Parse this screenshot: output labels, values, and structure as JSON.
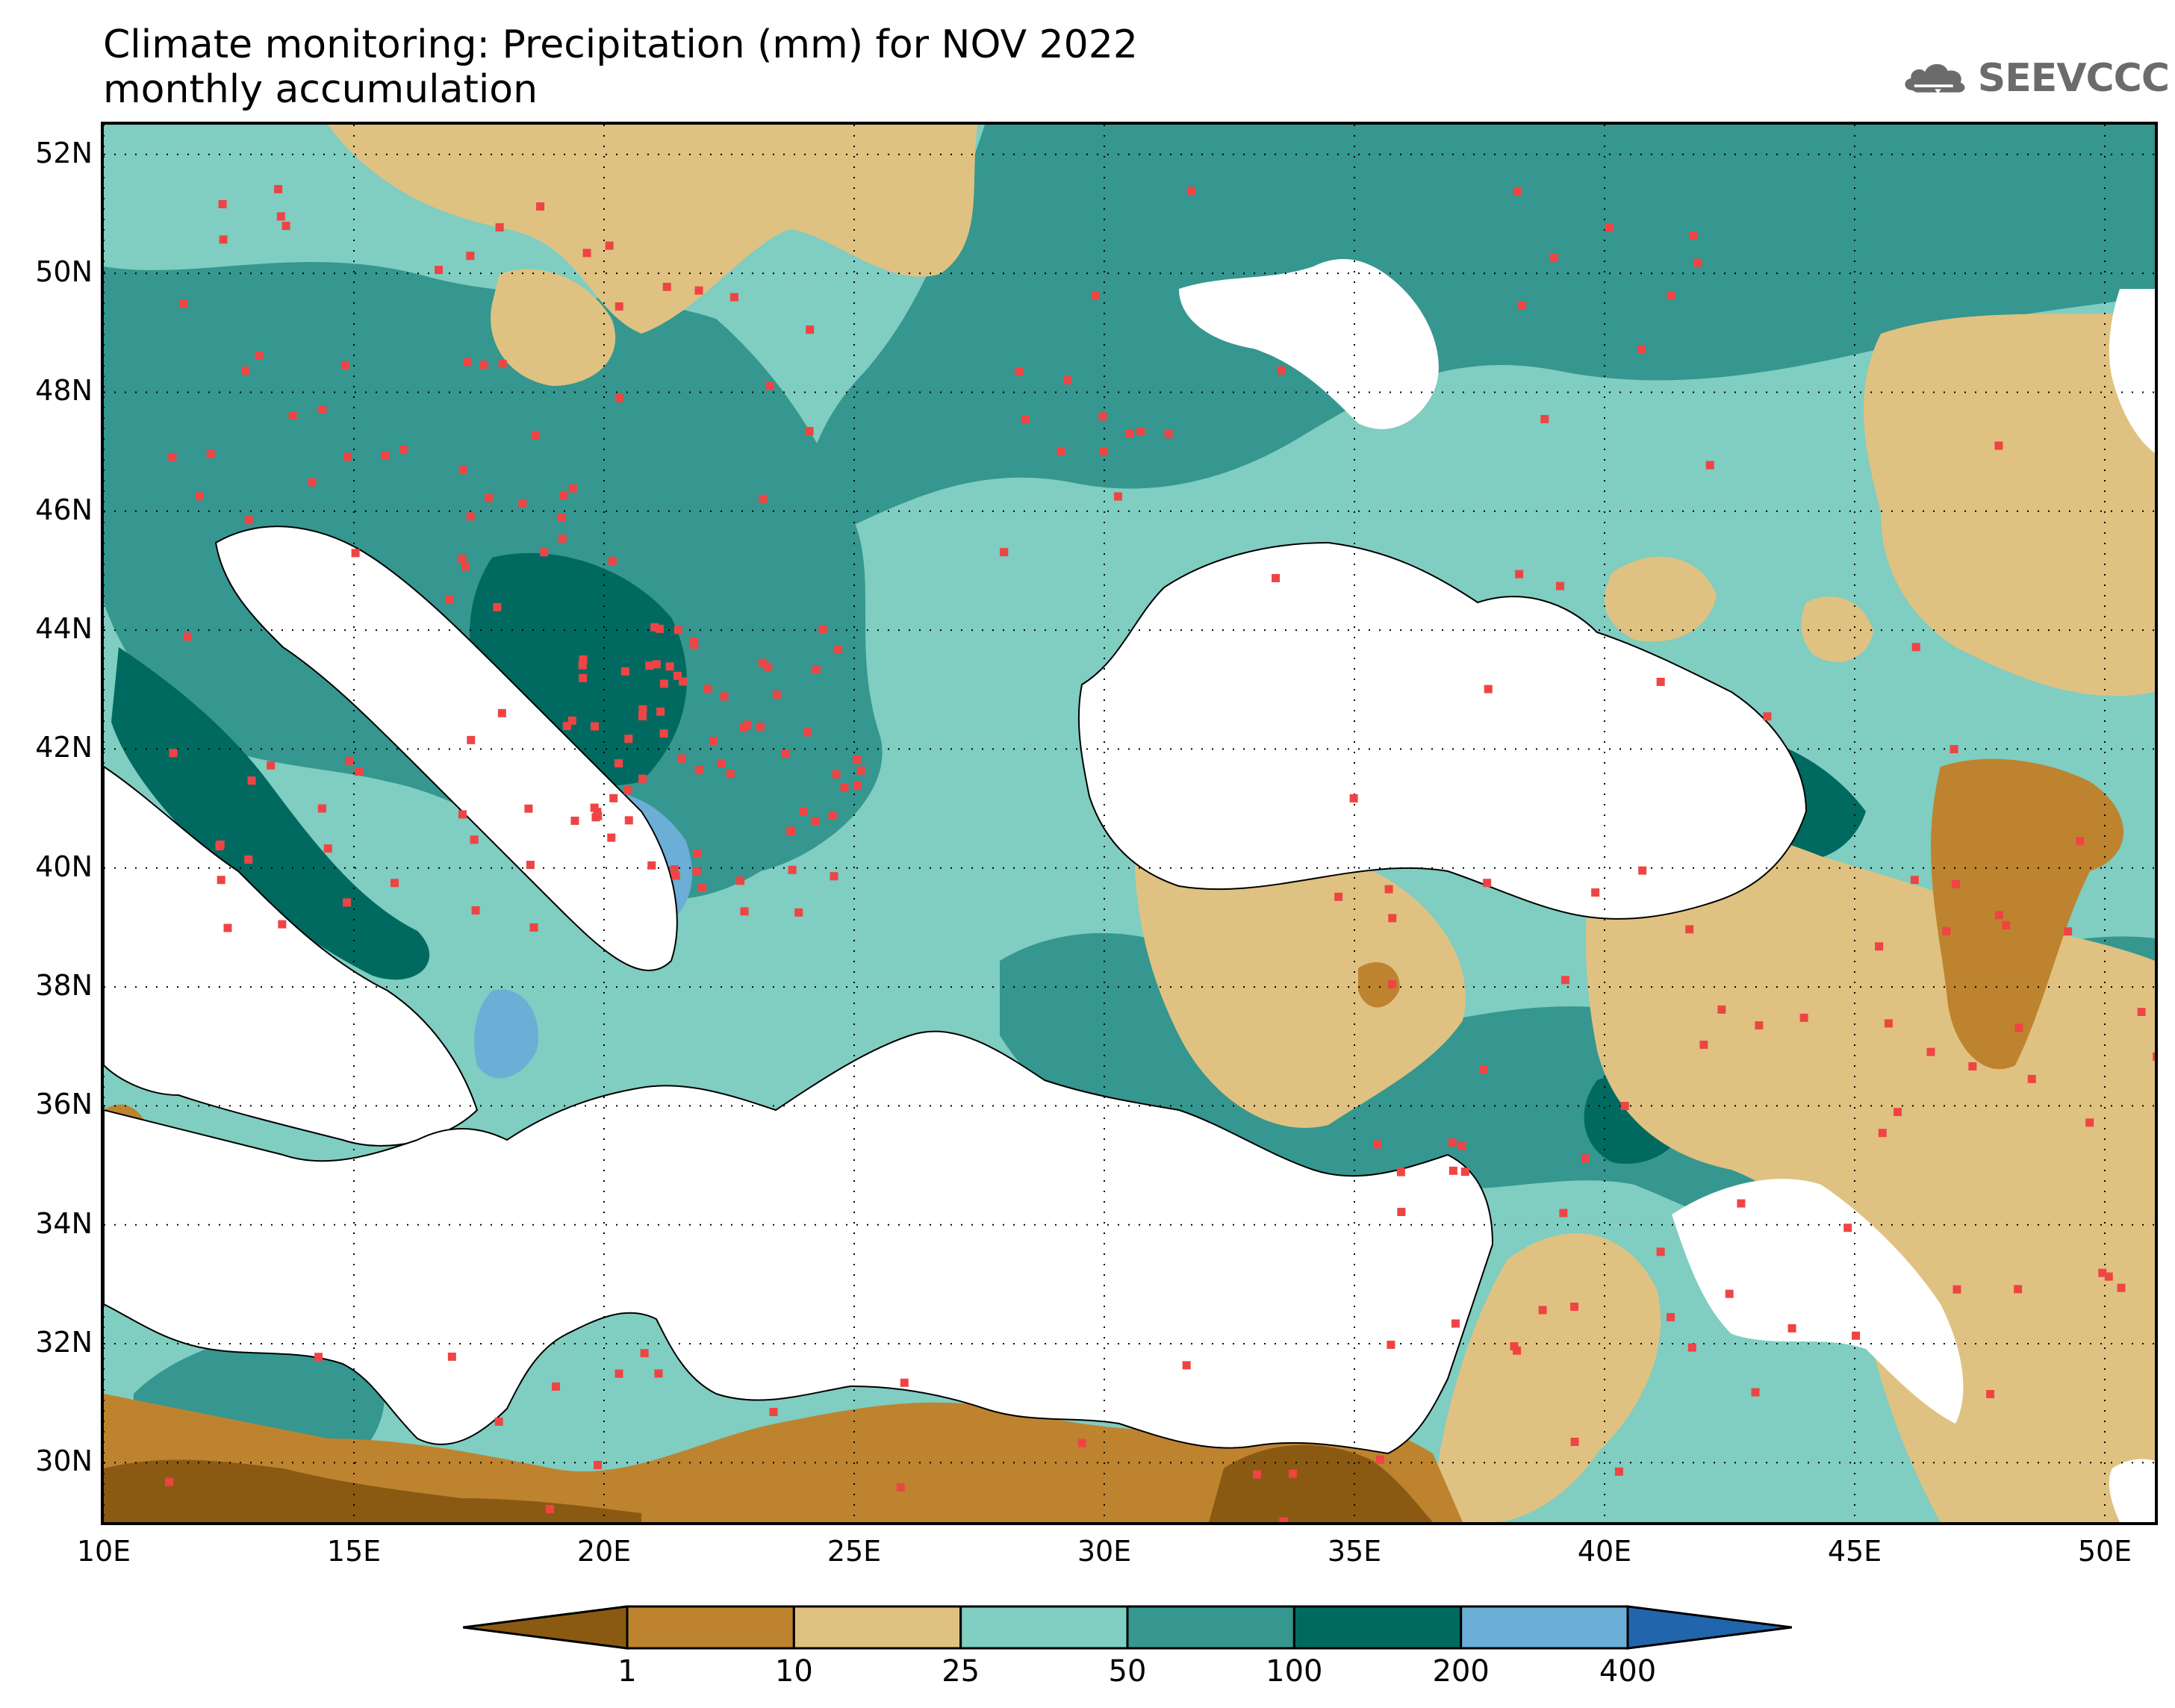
{
  "title": {
    "line1": "Climate monitoring: Precipitation (mm) for NOV 2022",
    "line2": "monthly accumulation"
  },
  "logo": {
    "text": "SEEVCCC",
    "icon": "cloud-icon"
  },
  "map": {
    "lon_range": [
      10,
      51
    ],
    "lat_range": [
      29,
      52.5
    ],
    "x_ticks": [
      "10E",
      "15E",
      "20E",
      "25E",
      "30E",
      "35E",
      "40E",
      "45E",
      "50E"
    ],
    "y_ticks": [
      "30N",
      "32N",
      "34N",
      "36N",
      "38N",
      "40N",
      "42N",
      "44N",
      "46N",
      "48N",
      "50N",
      "52N"
    ],
    "grid": "dotted",
    "station_marker_color": "#ef4444"
  },
  "colorbar": {
    "thresholds": [
      "1",
      "10",
      "25",
      "50",
      "100",
      "200",
      "400"
    ],
    "colors": [
      "#8b5a12",
      "#be832f",
      "#dfc281",
      "#80cdc1",
      "#35978f",
      "#016a60",
      "#6baed6",
      "#2166ac"
    ]
  }
}
